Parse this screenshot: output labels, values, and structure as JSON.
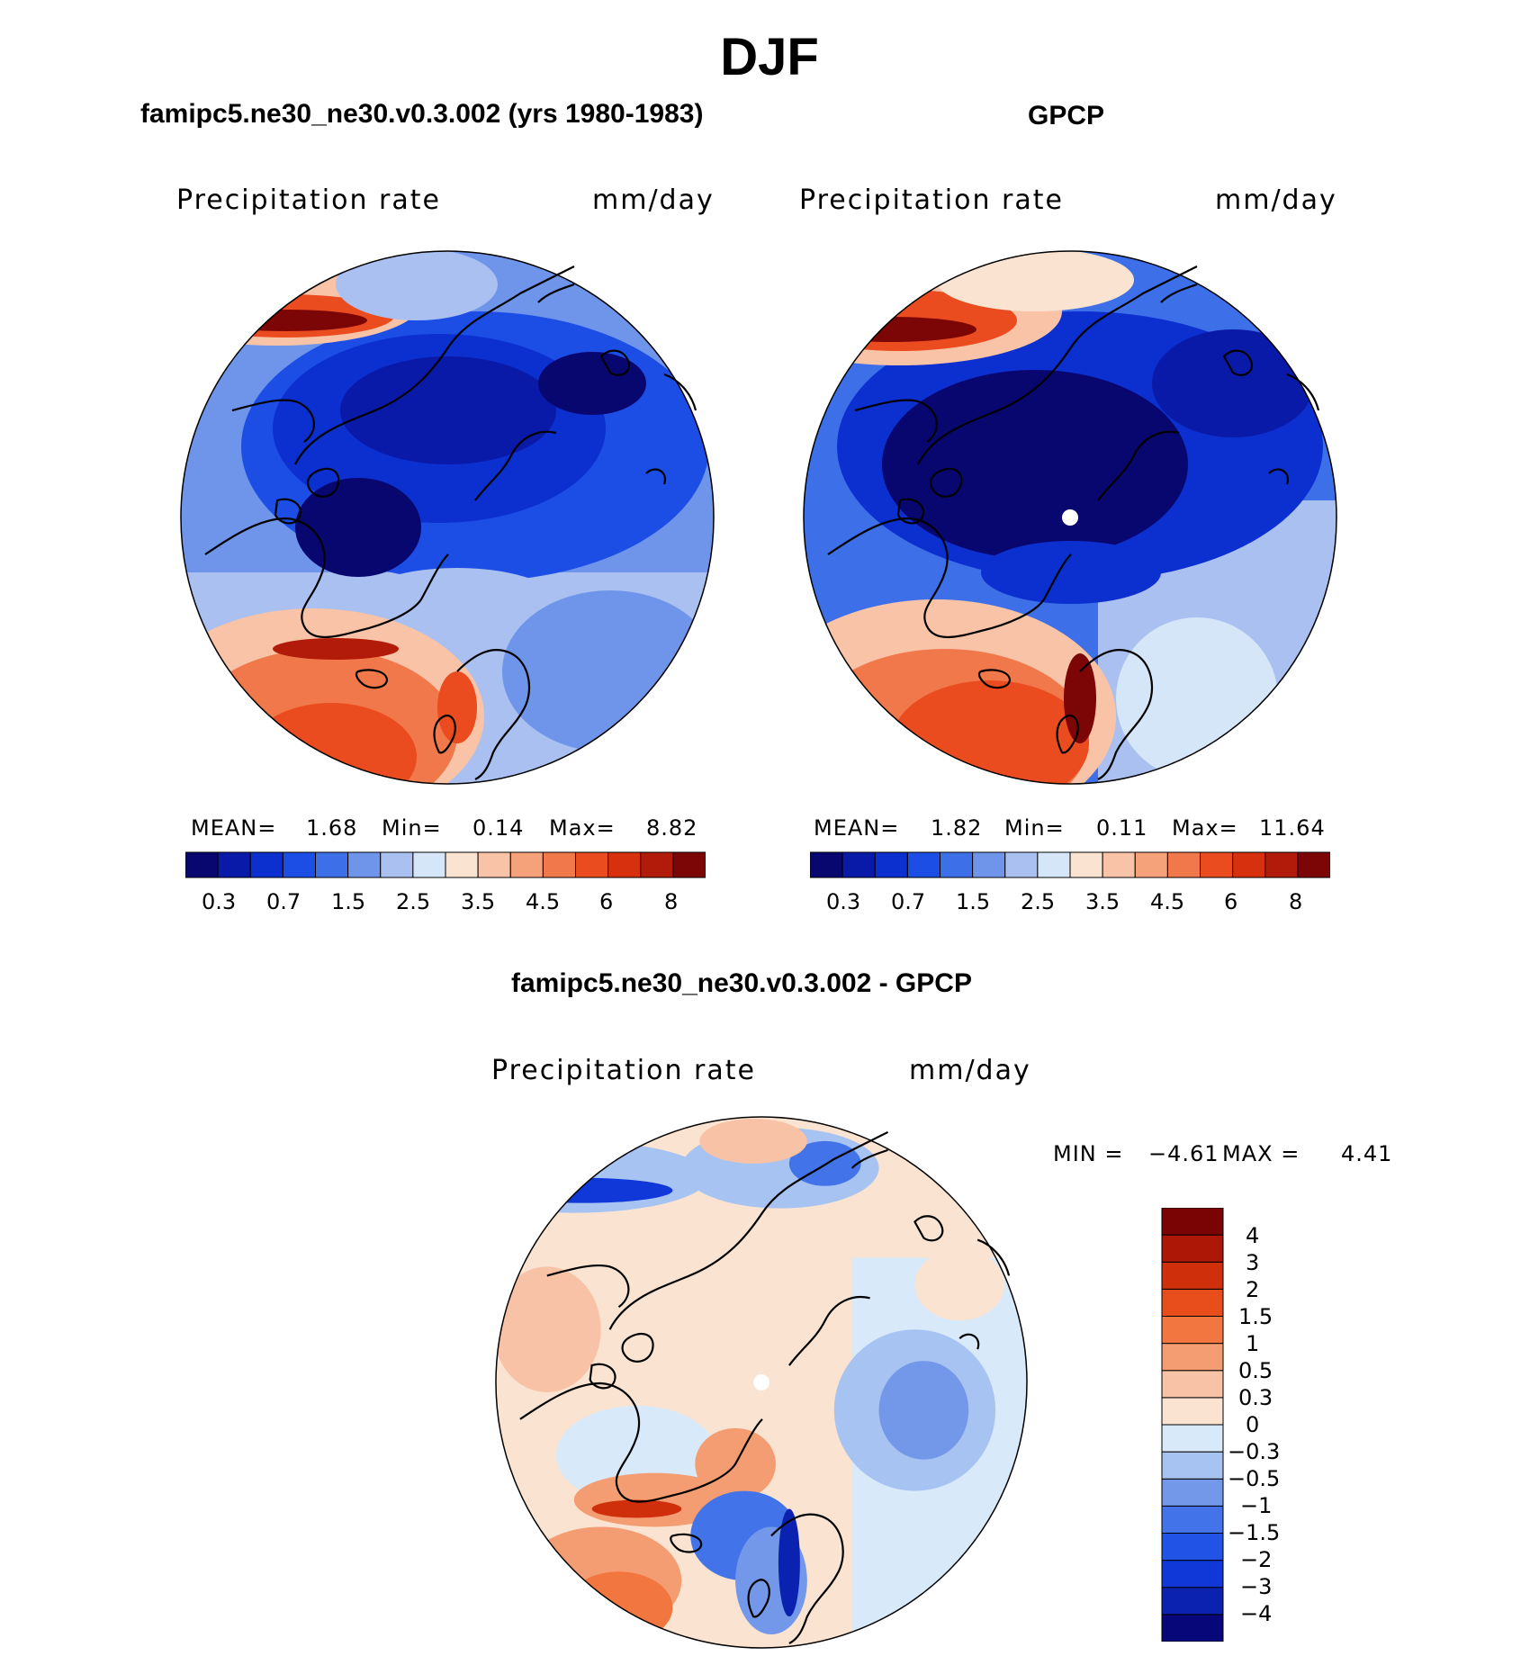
{
  "figure": {
    "season": "DJF"
  },
  "colors": {
    "abs_scale": [
      "#08076f",
      "#0a1aa8",
      "#0c2fd0",
      "#1c4ee6",
      "#3d6fe8",
      "#6f95ea",
      "#a9c0f0",
      "#d4e6f7",
      "#fbe3d1",
      "#f8c3a7",
      "#f5a27b",
      "#f1784a",
      "#ea4c1f",
      "#d7300e",
      "#b21b09",
      "#7c0605"
    ],
    "diff_scale": [
      "#07077a",
      "#0b22b0",
      "#1038d8",
      "#2154e6",
      "#4373e8",
      "#7398ea",
      "#a7c3f1",
      "#d8eafa",
      "#fbe3d1",
      "#f8c2a6",
      "#f59d72",
      "#f1763f",
      "#e84d1c",
      "#d02f0b",
      "#ad1706",
      "#7a0404"
    ],
    "outline": "#000000"
  },
  "chart_data": [
    {
      "type": "heatmap",
      "projection": "north polar stereographic",
      "title": "famipc5.ne30_ne30.v0.3.002 (yrs 1980-1983)",
      "variable": "Precipitation rate",
      "units": "mm/day",
      "stats": [
        {
          "label": "MEAN=",
          "value": "1.68"
        },
        {
          "label": "Min=",
          "value": "0.14"
        },
        {
          "label": "Max=",
          "value": "8.82"
        }
      ],
      "levels": [
        0.2,
        0.3,
        0.5,
        0.7,
        1,
        1.5,
        2,
        2.5,
        3,
        3.5,
        4,
        4.5,
        5,
        6,
        7,
        8
      ],
      "tick_labels": [
        "0.3",
        "0.7",
        "1.5",
        "2.5",
        "3.5",
        "4.5",
        "6",
        "8"
      ]
    },
    {
      "type": "heatmap",
      "projection": "north polar stereographic",
      "title": "GPCP",
      "variable": "Precipitation rate",
      "units": "mm/day",
      "stats": [
        {
          "label": "MEAN=",
          "value": "1.82"
        },
        {
          "label": "Min=",
          "value": "0.11"
        },
        {
          "label": "Max=",
          "value": "11.64"
        }
      ],
      "levels": [
        0.2,
        0.3,
        0.5,
        0.7,
        1,
        1.5,
        2,
        2.5,
        3,
        3.5,
        4,
        4.5,
        5,
        6,
        7,
        8
      ],
      "tick_labels": [
        "0.3",
        "0.7",
        "1.5",
        "2.5",
        "3.5",
        "4.5",
        "6",
        "8"
      ]
    },
    {
      "type": "heatmap",
      "projection": "north polar stereographic",
      "title": "famipc5.ne30_ne30.v0.3.002 - GPCP",
      "variable": "Precipitation rate",
      "units": "mm/day",
      "min_label": "MIN =",
      "min_value": "−4.61",
      "max_label": "MAX =",
      "max_value": "4.41",
      "tick_labels": [
        "4",
        "3",
        "2",
        "1.5",
        "1",
        "0.5",
        "0.3",
        "0",
        "−0.3",
        "−0.5",
        "−1",
        "−1.5",
        "−2",
        "−3",
        "−4"
      ]
    }
  ]
}
